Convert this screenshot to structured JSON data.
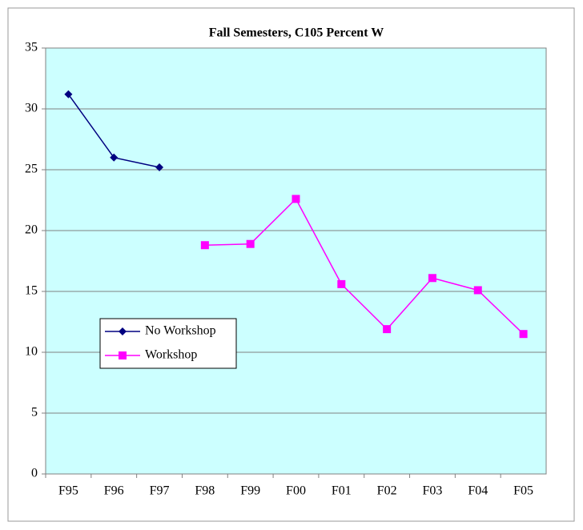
{
  "chart_data": {
    "type": "line",
    "title": "Fall Semesters, C105 Percent W",
    "categories": [
      "F95",
      "F96",
      "F97",
      "F98",
      "F99",
      "F00",
      "F01",
      "F02",
      "F03",
      "F04",
      "F05"
    ],
    "series": [
      {
        "name": "No Workshop",
        "color": "#000080",
        "marker": "diamond",
        "values": [
          31.2,
          26.0,
          25.2,
          null,
          null,
          null,
          null,
          null,
          null,
          null,
          null
        ]
      },
      {
        "name": "Workshop",
        "color": "#ff00ff",
        "marker": "square",
        "values": [
          null,
          null,
          null,
          18.8,
          18.9,
          22.6,
          15.6,
          11.9,
          16.1,
          15.1,
          11.5
        ]
      }
    ],
    "ylim": [
      0,
      35
    ],
    "yticks": [
      0,
      5,
      10,
      15,
      20,
      25,
      30,
      35
    ],
    "grid": true,
    "legend": "center left"
  }
}
